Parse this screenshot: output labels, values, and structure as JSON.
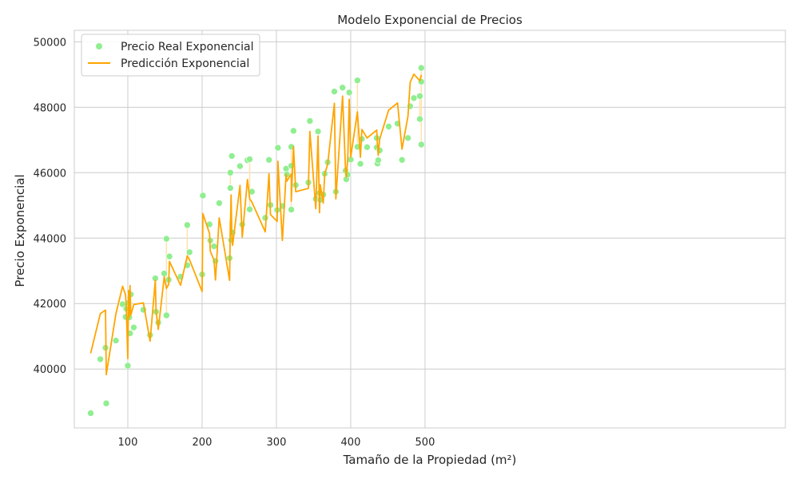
{
  "chart_data": {
    "type": "scatter",
    "title": "Modelo Exponencial de Precios",
    "xlabel": "Tamaño de la Propiedad (m²)",
    "ylabel": "Precio Exponencial",
    "xlim": [
      28,
      985
    ],
    "ylim": [
      38200,
      50350
    ],
    "xticks": [
      100,
      200,
      300,
      400,
      500
    ],
    "yticks": [
      40000,
      42000,
      44000,
      46000,
      48000,
      50000
    ],
    "x_tick_labels": [
      "100",
      "200",
      "300",
      "400",
      "500"
    ],
    "y_tick_labels": [
      "40000",
      "42000",
      "44000",
      "46000",
      "48000",
      "50000"
    ],
    "grid": true,
    "legend_position": "top-left",
    "colors": {
      "scatter": "#90ee90",
      "line": "#ffa500",
      "band": "#ffe2a8",
      "grid": "#cccccc",
      "axis": "#cccccc"
    },
    "series": [
      {
        "name": "Precio Real Exponencial",
        "kind": "scatter",
        "points": [
          [
            50,
            38650
          ],
          [
            63,
            40300
          ],
          [
            70,
            40650
          ],
          [
            71,
            38950
          ],
          [
            84,
            40870
          ],
          [
            93,
            41980
          ],
          [
            97,
            41590
          ],
          [
            98,
            41840
          ],
          [
            100,
            40100
          ],
          [
            101,
            42020
          ],
          [
            102,
            41580
          ],
          [
            103,
            41090
          ],
          [
            104,
            42280
          ],
          [
            108,
            41270
          ],
          [
            121,
            41810
          ],
          [
            130,
            41040
          ],
          [
            137,
            42770
          ],
          [
            138,
            41750
          ],
          [
            141,
            41420
          ],
          [
            149,
            42920
          ],
          [
            152,
            43980
          ],
          [
            152,
            41640
          ],
          [
            155,
            42730
          ],
          [
            156,
            43440
          ],
          [
            171,
            42820
          ],
          [
            180,
            44400
          ],
          [
            180,
            43170
          ],
          [
            183,
            43570
          ],
          [
            200,
            42890
          ],
          [
            201,
            45300
          ],
          [
            210,
            44420
          ],
          [
            211,
            43930
          ],
          [
            216,
            43750
          ],
          [
            218,
            43300
          ],
          [
            223,
            45070
          ],
          [
            237,
            43390
          ],
          [
            238,
            45530
          ],
          [
            238,
            46000
          ],
          [
            239,
            43940
          ],
          [
            240,
            46510
          ],
          [
            241,
            44170
          ],
          [
            251,
            46200
          ],
          [
            254,
            44420
          ],
          [
            261,
            46380
          ],
          [
            264,
            46410
          ],
          [
            264,
            44880
          ],
          [
            267,
            45420
          ],
          [
            285,
            44620
          ],
          [
            290,
            46390
          ],
          [
            292,
            45010
          ],
          [
            301,
            44860
          ],
          [
            302,
            46760
          ],
          [
            308,
            44980
          ],
          [
            313,
            46120
          ],
          [
            314,
            45950
          ],
          [
            320,
            46210
          ],
          [
            320,
            46790
          ],
          [
            320,
            44870
          ],
          [
            323,
            47280
          ],
          [
            326,
            45620
          ],
          [
            343,
            45700
          ],
          [
            345,
            47580
          ],
          [
            353,
            45200
          ],
          [
            356,
            47260
          ],
          [
            358,
            45380
          ],
          [
            359,
            45170
          ],
          [
            363,
            45330
          ],
          [
            365,
            45970
          ],
          [
            369,
            46320
          ],
          [
            378,
            48480
          ],
          [
            380,
            45420
          ],
          [
            389,
            48600
          ],
          [
            393,
            46060
          ],
          [
            394,
            45800
          ],
          [
            396,
            45940
          ],
          [
            398,
            48450
          ],
          [
            400,
            46400
          ],
          [
            409,
            48820
          ],
          [
            409,
            46790
          ],
          [
            413,
            46270
          ],
          [
            415,
            47030
          ],
          [
            422,
            46780
          ],
          [
            435,
            46770
          ],
          [
            435,
            47060
          ],
          [
            436,
            46280
          ],
          [
            437,
            46380
          ],
          [
            439,
            46680
          ],
          [
            451,
            47410
          ],
          [
            463,
            47500
          ],
          [
            469,
            46390
          ],
          [
            477,
            47060
          ],
          [
            480,
            48030
          ],
          [
            485,
            48280
          ],
          [
            493,
            48340
          ],
          [
            493,
            47640
          ],
          [
            495,
            49200
          ],
          [
            495,
            48780
          ],
          [
            495,
            46860
          ]
        ]
      },
      {
        "name": "Predicción Exponencial",
        "kind": "line",
        "points": [
          [
            50,
            40480
          ],
          [
            63,
            41690
          ],
          [
            70,
            41800
          ],
          [
            71,
            39830
          ],
          [
            84,
            41690
          ],
          [
            93,
            42530
          ],
          [
            97,
            42260
          ],
          [
            98,
            41870
          ],
          [
            100,
            40320
          ],
          [
            101,
            42400
          ],
          [
            102,
            41580
          ],
          [
            103,
            42550
          ],
          [
            104,
            41650
          ],
          [
            108,
            41970
          ],
          [
            121,
            42020
          ],
          [
            130,
            40850
          ],
          [
            137,
            42710
          ],
          [
            138,
            41780
          ],
          [
            141,
            41210
          ],
          [
            149,
            42820
          ],
          [
            152,
            42460
          ],
          [
            155,
            42590
          ],
          [
            156,
            43290
          ],
          [
            171,
            42560
          ],
          [
            180,
            43460
          ],
          [
            183,
            43340
          ],
          [
            200,
            42370
          ],
          [
            201,
            44750
          ],
          [
            210,
            44140
          ],
          [
            211,
            43600
          ],
          [
            216,
            43330
          ],
          [
            218,
            42720
          ],
          [
            223,
            44620
          ],
          [
            237,
            42710
          ],
          [
            238,
            44530
          ],
          [
            238,
            44250
          ],
          [
            239,
            45320
          ],
          [
            240,
            44100
          ],
          [
            241,
            43780
          ],
          [
            251,
            45610
          ],
          [
            254,
            44030
          ],
          [
            261,
            45790
          ],
          [
            264,
            45200
          ],
          [
            267,
            45100
          ],
          [
            285,
            44190
          ],
          [
            290,
            45970
          ],
          [
            292,
            44720
          ],
          [
            301,
            44510
          ],
          [
            302,
            46350
          ],
          [
            308,
            43930
          ],
          [
            313,
            45950
          ],
          [
            314,
            45740
          ],
          [
            320,
            45960
          ],
          [
            320,
            45130
          ],
          [
            323,
            46800
          ],
          [
            326,
            45420
          ],
          [
            343,
            45520
          ],
          [
            345,
            47260
          ],
          [
            353,
            44900
          ],
          [
            356,
            47120
          ],
          [
            358,
            44780
          ],
          [
            359,
            45630
          ],
          [
            363,
            45070
          ],
          [
            365,
            45960
          ],
          [
            369,
            46260
          ],
          [
            378,
            48120
          ],
          [
            380,
            45200
          ],
          [
            389,
            48340
          ],
          [
            393,
            46100
          ],
          [
            394,
            45860
          ],
          [
            396,
            46420
          ],
          [
            398,
            48240
          ],
          [
            400,
            46480
          ],
          [
            409,
            47860
          ],
          [
            413,
            46470
          ],
          [
            415,
            47320
          ],
          [
            422,
            47060
          ],
          [
            435,
            47300
          ],
          [
            437,
            46530
          ],
          [
            439,
            47030
          ],
          [
            451,
            47910
          ],
          [
            463,
            48130
          ],
          [
            469,
            46720
          ],
          [
            477,
            47720
          ],
          [
            480,
            48760
          ],
          [
            485,
            49010
          ],
          [
            493,
            48810
          ],
          [
            495,
            48990
          ]
        ]
      }
    ]
  }
}
